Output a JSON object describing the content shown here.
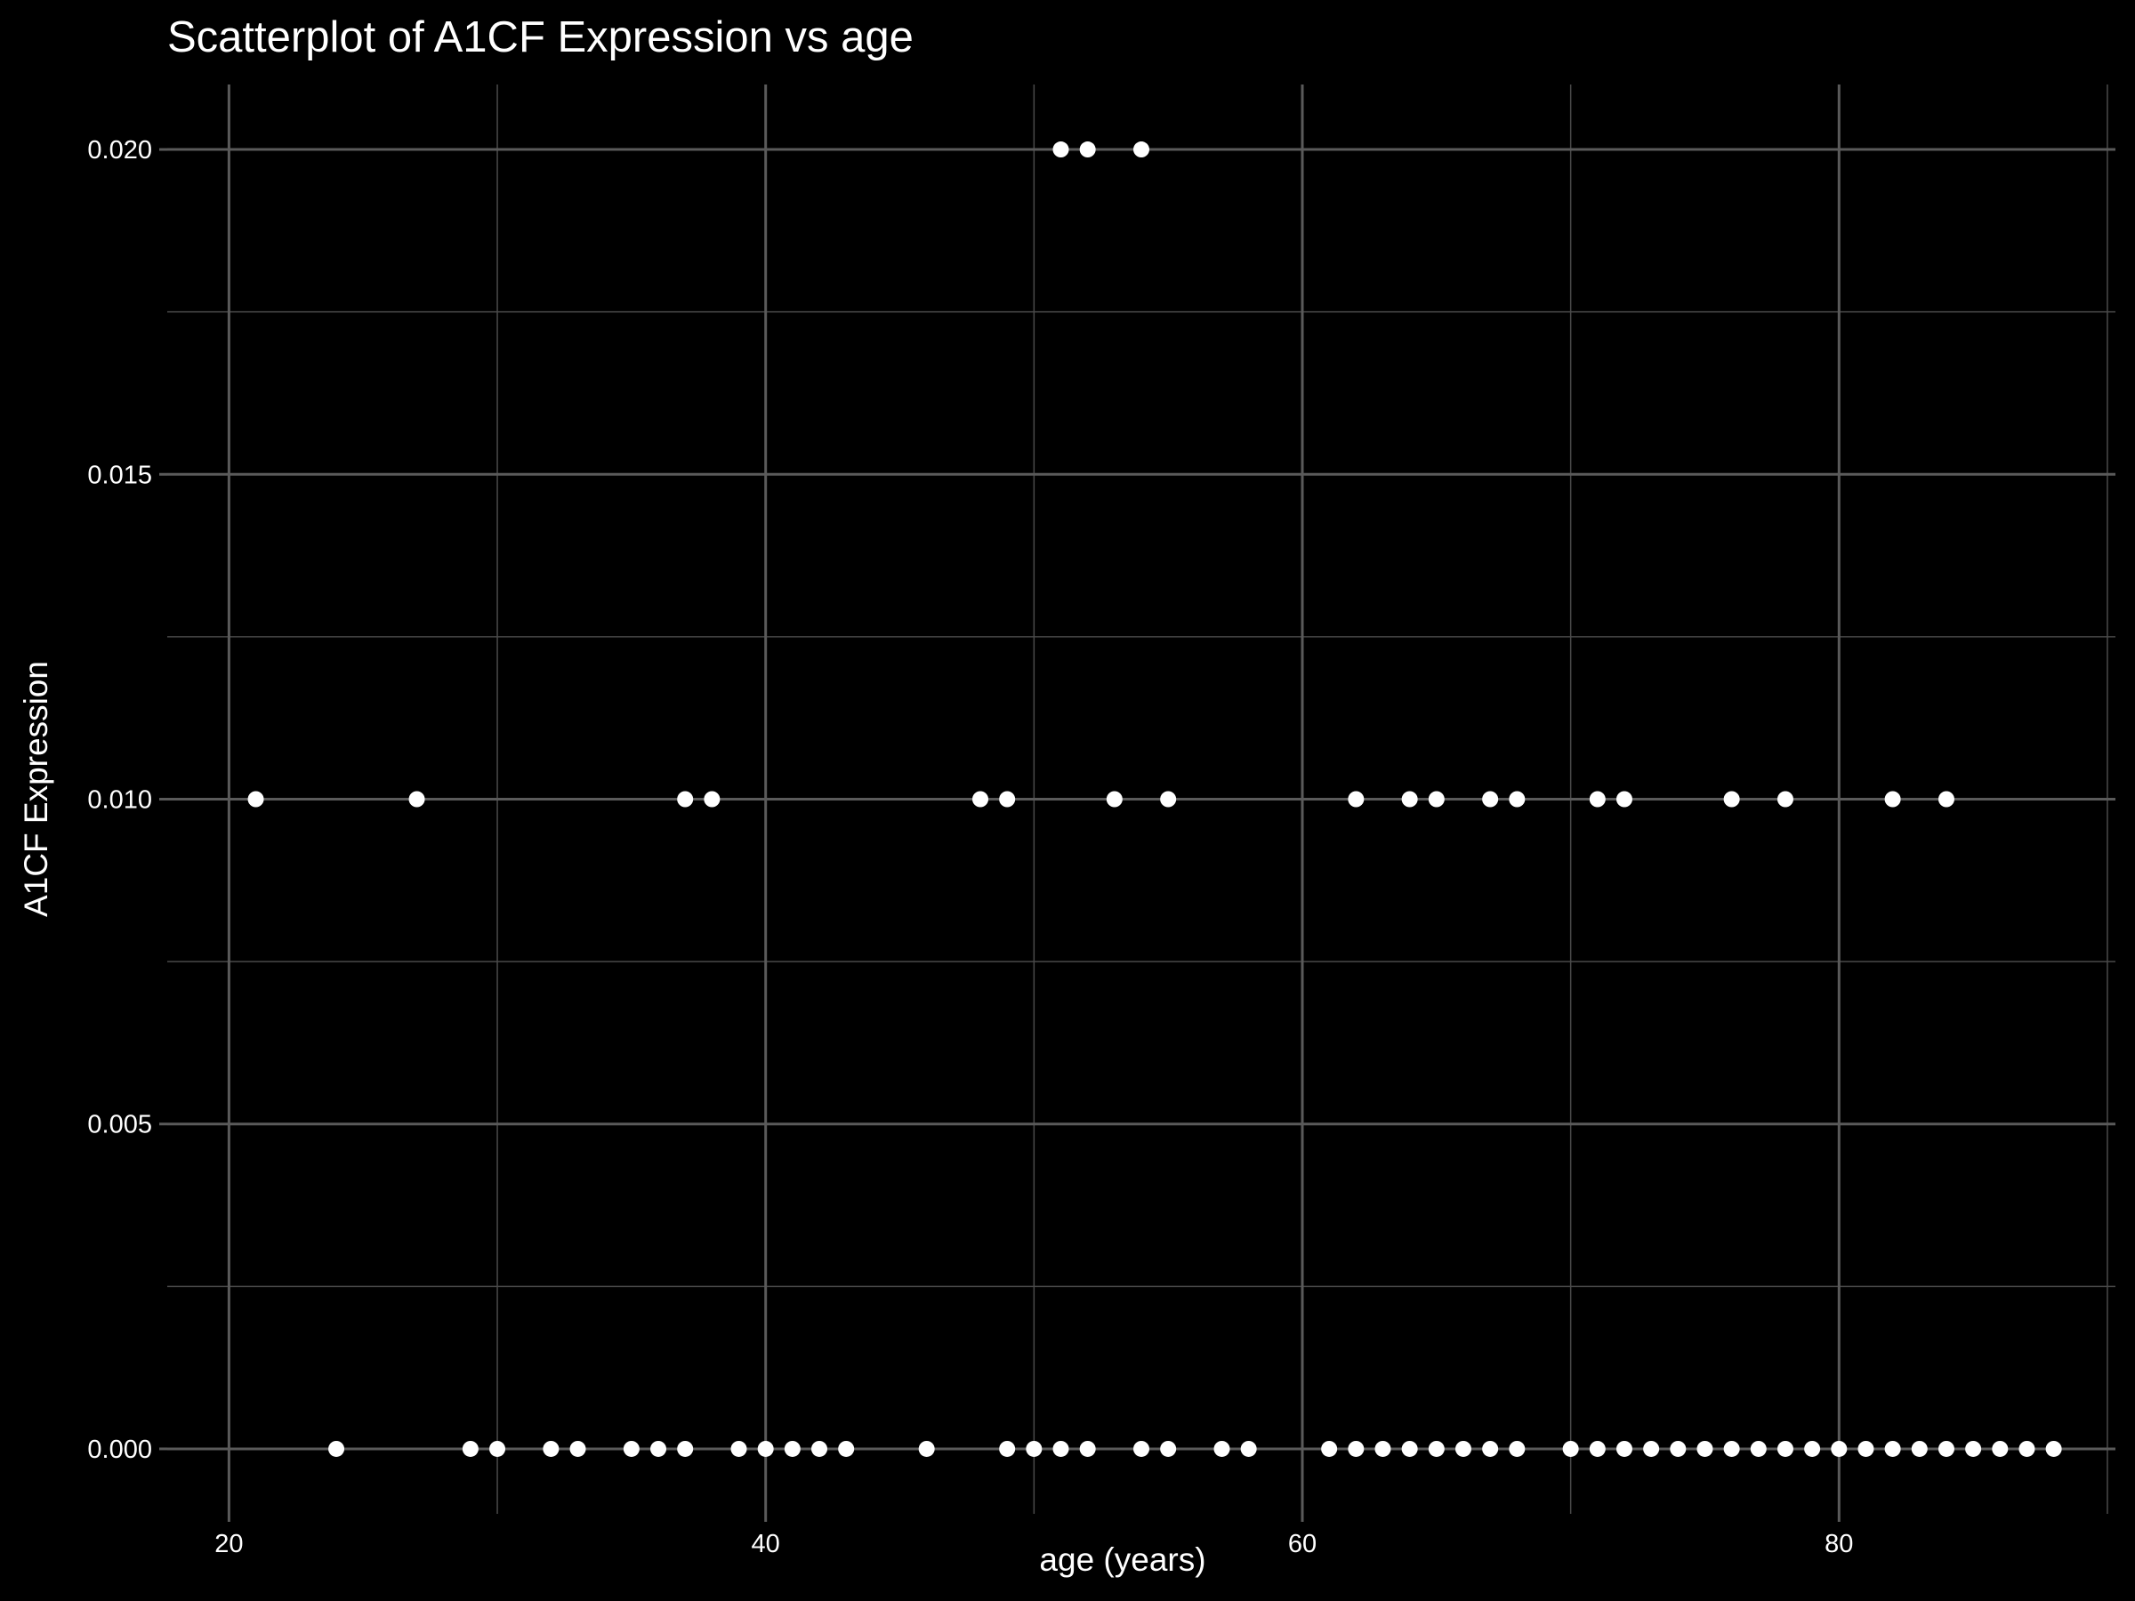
{
  "chart_data": {
    "type": "scatter",
    "title": "Scatterplot of A1CF Expression vs age",
    "xlabel": "age (years)",
    "ylabel": "A1CF Expression",
    "xlim": [
      17.7,
      90.3
    ],
    "ylim": [
      -0.001,
      0.021
    ],
    "x_ticks": [
      20,
      40,
      60,
      80
    ],
    "x_tick_labels": [
      "20",
      "40",
      "60",
      "80"
    ],
    "x_minor_ticks": [
      30,
      50,
      70,
      90
    ],
    "y_ticks": [
      0.0,
      0.005,
      0.01,
      0.015,
      0.02
    ],
    "y_tick_labels": [
      "0.000",
      "0.005",
      "0.010",
      "0.015",
      "0.020"
    ],
    "y_minor_ticks": [
      0.0025,
      0.0075,
      0.0125,
      0.0175
    ],
    "grid": true,
    "legend": "none",
    "point_color": "#ffffff",
    "background_color": "#000000",
    "points": [
      {
        "x": 51,
        "y": 0.02
      },
      {
        "x": 52,
        "y": 0.02
      },
      {
        "x": 54,
        "y": 0.02
      },
      {
        "x": 21,
        "y": 0.01
      },
      {
        "x": 27,
        "y": 0.01
      },
      {
        "x": 37,
        "y": 0.01
      },
      {
        "x": 38,
        "y": 0.01
      },
      {
        "x": 48,
        "y": 0.01
      },
      {
        "x": 49,
        "y": 0.01
      },
      {
        "x": 53,
        "y": 0.01
      },
      {
        "x": 55,
        "y": 0.01
      },
      {
        "x": 62,
        "y": 0.01
      },
      {
        "x": 64,
        "y": 0.01
      },
      {
        "x": 65,
        "y": 0.01
      },
      {
        "x": 67,
        "y": 0.01
      },
      {
        "x": 68,
        "y": 0.01
      },
      {
        "x": 71,
        "y": 0.01
      },
      {
        "x": 72,
        "y": 0.01
      },
      {
        "x": 76,
        "y": 0.01
      },
      {
        "x": 78,
        "y": 0.01
      },
      {
        "x": 82,
        "y": 0.01
      },
      {
        "x": 84,
        "y": 0.01
      },
      {
        "x": 24,
        "y": 0
      },
      {
        "x": 29,
        "y": 0
      },
      {
        "x": 30,
        "y": 0
      },
      {
        "x": 32,
        "y": 0
      },
      {
        "x": 33,
        "y": 0
      },
      {
        "x": 35,
        "y": 0
      },
      {
        "x": 36,
        "y": 0
      },
      {
        "x": 37,
        "y": 0
      },
      {
        "x": 39,
        "y": 0
      },
      {
        "x": 40,
        "y": 0
      },
      {
        "x": 41,
        "y": 0
      },
      {
        "x": 42,
        "y": 0
      },
      {
        "x": 43,
        "y": 0
      },
      {
        "x": 46,
        "y": 0
      },
      {
        "x": 49,
        "y": 0
      },
      {
        "x": 50,
        "y": 0
      },
      {
        "x": 51,
        "y": 0
      },
      {
        "x": 52,
        "y": 0
      },
      {
        "x": 54,
        "y": 0
      },
      {
        "x": 55,
        "y": 0
      },
      {
        "x": 57,
        "y": 0
      },
      {
        "x": 58,
        "y": 0
      },
      {
        "x": 61,
        "y": 0
      },
      {
        "x": 62,
        "y": 0
      },
      {
        "x": 63,
        "y": 0
      },
      {
        "x": 64,
        "y": 0
      },
      {
        "x": 65,
        "y": 0
      },
      {
        "x": 66,
        "y": 0
      },
      {
        "x": 67,
        "y": 0
      },
      {
        "x": 68,
        "y": 0
      },
      {
        "x": 70,
        "y": 0
      },
      {
        "x": 71,
        "y": 0
      },
      {
        "x": 72,
        "y": 0
      },
      {
        "x": 73,
        "y": 0
      },
      {
        "x": 74,
        "y": 0
      },
      {
        "x": 75,
        "y": 0
      },
      {
        "x": 76,
        "y": 0
      },
      {
        "x": 77,
        "y": 0
      },
      {
        "x": 78,
        "y": 0
      },
      {
        "x": 79,
        "y": 0
      },
      {
        "x": 80,
        "y": 0
      },
      {
        "x": 81,
        "y": 0
      },
      {
        "x": 82,
        "y": 0
      },
      {
        "x": 83,
        "y": 0
      },
      {
        "x": 84,
        "y": 0
      },
      {
        "x": 85,
        "y": 0
      },
      {
        "x": 86,
        "y": 0
      },
      {
        "x": 87,
        "y": 0
      },
      {
        "x": 88,
        "y": 0
      }
    ]
  }
}
